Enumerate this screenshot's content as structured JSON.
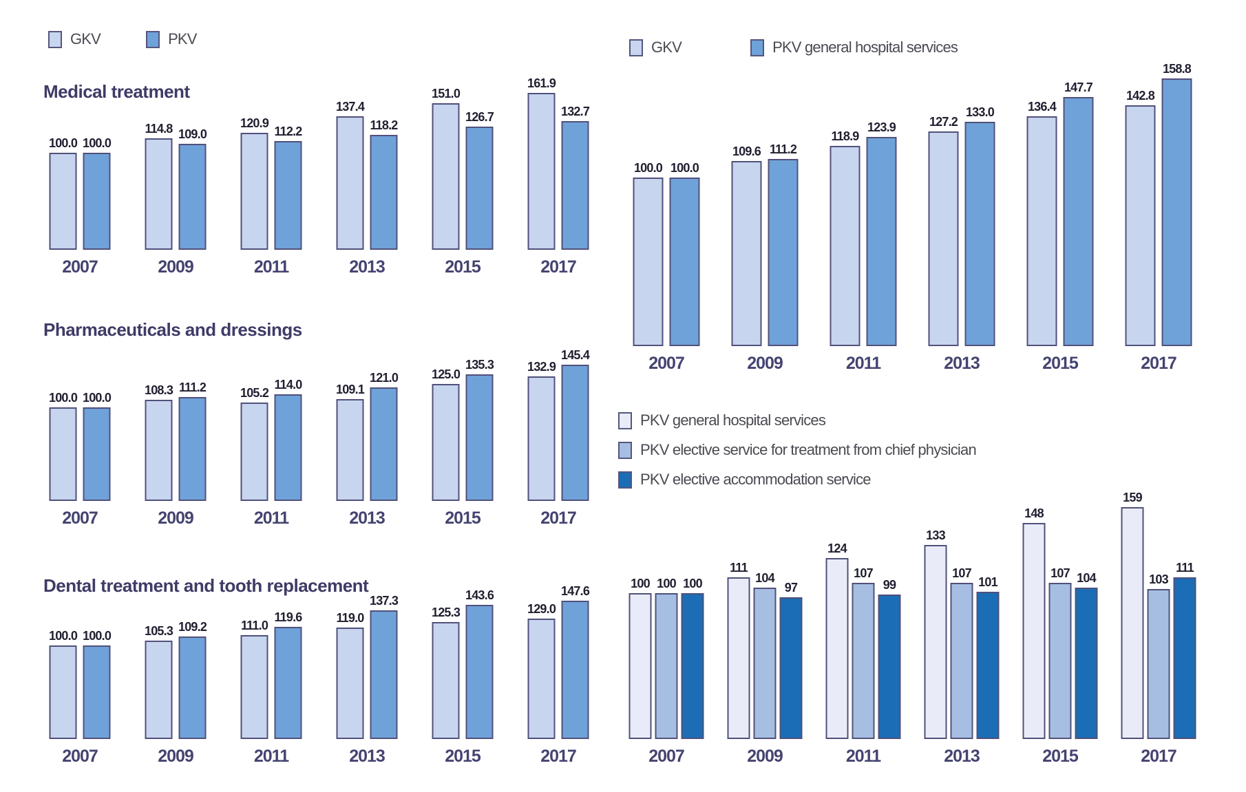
{
  "page": {
    "background": "#ffffff",
    "bar_border_color": "#50507a"
  },
  "colors": {
    "gkv_light_blue": "#c7d5ef",
    "pkv_mid_blue": "#6fa2d9",
    "pkv_general_pale": "#e9ecf8",
    "pkv_chief_blue": "#a6bee2",
    "pkv_accommodation_blue": "#1b6db6"
  },
  "legends": {
    "left_top": {
      "items": [
        {
          "label": "GKV",
          "color": "#c7d5ef"
        },
        {
          "label": "PKV",
          "color": "#6fa2d9"
        }
      ]
    },
    "right_top": {
      "items": [
        {
          "label": "GKV",
          "color": "#c7d5ef"
        },
        {
          "label": "PKV general hospital services",
          "color": "#6fa2d9"
        }
      ]
    },
    "right_bottom": {
      "items": [
        {
          "label": "PKV general hospital services",
          "color": "#e9ecf8"
        },
        {
          "label": "PKV elective service for treatment from chief physician",
          "color": "#a6bee2"
        },
        {
          "label": "PKV elective accommodation service",
          "color": "#1b6db6"
        }
      ]
    }
  },
  "chart_data": [
    {
      "id": "medical-treatment",
      "type": "bar",
      "title": "Medical treatment",
      "categories": [
        "2007",
        "2009",
        "2011",
        "2013",
        "2015",
        "2017"
      ],
      "series": [
        {
          "name": "GKV",
          "color": "#c7d5ef",
          "values": [
            100.0,
            114.8,
            120.9,
            137.4,
            151.0,
            161.9
          ]
        },
        {
          "name": "PKV",
          "color": "#6fa2d9",
          "values": [
            100.0,
            109.0,
            112.2,
            118.2,
            126.7,
            132.7
          ]
        }
      ],
      "decimals": 1,
      "index_base": 100,
      "grid": false,
      "legend_position": "top-left"
    },
    {
      "id": "pharmaceuticals-and-dressings",
      "type": "bar",
      "title": "Pharmaceuticals and dressings",
      "categories": [
        "2007",
        "2009",
        "2011",
        "2013",
        "2015",
        "2017"
      ],
      "series": [
        {
          "name": "GKV",
          "color": "#c7d5ef",
          "values": [
            100.0,
            108.3,
            105.2,
            109.1,
            125.0,
            132.9
          ]
        },
        {
          "name": "PKV",
          "color": "#6fa2d9",
          "values": [
            100.0,
            111.2,
            114.0,
            121.0,
            135.3,
            145.4
          ]
        }
      ],
      "decimals": 1,
      "index_base": 100,
      "grid": false,
      "legend_position": "top-left"
    },
    {
      "id": "dental-treatment-and-tooth-replacement",
      "type": "bar",
      "title": "Dental treatment and tooth replacement",
      "categories": [
        "2007",
        "2009",
        "2011",
        "2013",
        "2015",
        "2017"
      ],
      "series": [
        {
          "name": "GKV",
          "color": "#c7d5ef",
          "values": [
            100.0,
            105.3,
            111.0,
            119.0,
            125.3,
            129.0
          ]
        },
        {
          "name": "PKV",
          "color": "#6fa2d9",
          "values": [
            100.0,
            109.2,
            119.6,
            137.3,
            143.6,
            147.6
          ]
        }
      ],
      "decimals": 1,
      "index_base": 100,
      "grid": false,
      "legend_position": "top-left"
    },
    {
      "id": "gkv-vs-pkv-general-hospital-services",
      "type": "bar",
      "title": "",
      "categories": [
        "2007",
        "2009",
        "2011",
        "2013",
        "2015",
        "2017"
      ],
      "series": [
        {
          "name": "GKV",
          "color": "#c7d5ef",
          "values": [
            100.0,
            109.6,
            118.9,
            127.2,
            136.4,
            142.8
          ]
        },
        {
          "name": "PKV general hospital services",
          "color": "#6fa2d9",
          "values": [
            100.0,
            111.2,
            123.9,
            133.0,
            147.7,
            158.8
          ]
        }
      ],
      "decimals": 1,
      "index_base": 100,
      "grid": false,
      "legend_position": "above-chart"
    },
    {
      "id": "pkv-hospital-service-components",
      "type": "bar",
      "title": "",
      "categories": [
        "2007",
        "2009",
        "2011",
        "2013",
        "2015",
        "2017"
      ],
      "series": [
        {
          "name": "PKV general hospital services",
          "color": "#e9ecf8",
          "values": [
            100,
            111,
            124,
            133,
            148,
            159
          ]
        },
        {
          "name": "PKV elective service for treatment from chief physician",
          "color": "#a6bee2",
          "values": [
            100,
            104,
            107,
            107,
            107,
            103
          ]
        },
        {
          "name": "PKV elective accommodation service",
          "color": "#1b6db6",
          "values": [
            100,
            97,
            99,
            101,
            104,
            111
          ]
        }
      ],
      "decimals": 0,
      "index_base": 100,
      "grid": false,
      "legend_position": "above-chart"
    }
  ]
}
